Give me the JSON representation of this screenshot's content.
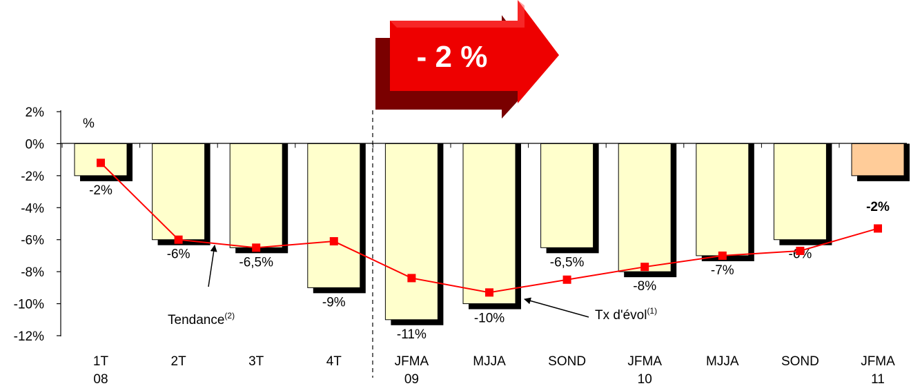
{
  "chart_data": {
    "type": "bar",
    "title": "",
    "y_unit_label": "%",
    "ylim": [
      -12,
      2
    ],
    "y_ticks": [
      "2%",
      "0%",
      "-2%",
      "-4%",
      "-6%",
      "-8%",
      "-10%",
      "-12%"
    ],
    "y_tick_values": [
      2,
      0,
      -2,
      -4,
      -6,
      -8,
      -10,
      -12
    ],
    "categories": [
      {
        "top": "1T",
        "bottom": "08"
      },
      {
        "top": "2T",
        "bottom": ""
      },
      {
        "top": "3T",
        "bottom": ""
      },
      {
        "top": "4T",
        "bottom": ""
      },
      {
        "top": "JFMA",
        "bottom": "09"
      },
      {
        "top": "MJJA",
        "bottom": ""
      },
      {
        "top": "SOND",
        "bottom": ""
      },
      {
        "top": "JFMA",
        "bottom": "10"
      },
      {
        "top": "MJJA",
        "bottom": ""
      },
      {
        "top": "SOND",
        "bottom": ""
      },
      {
        "top": "JFMA",
        "bottom": "11"
      }
    ],
    "series": [
      {
        "name": "Tendance",
        "kind": "bar",
        "values": [
          -2,
          -6,
          -6.5,
          -9,
          -11,
          -10,
          -6.5,
          -8,
          -7,
          -6,
          -2
        ],
        "labels": [
          "-2%",
          "-6%",
          "-6,5%",
          "-9%",
          "-11%",
          "-10%",
          "-6,5%",
          "-8%",
          "-7%",
          "-6%",
          "-2%"
        ],
        "color": "#FFFFCC",
        "highlight_color": "#FFCC99",
        "highlight_index": 10
      },
      {
        "name": "Tx d'évol",
        "kind": "line",
        "values": [
          -1.2,
          -6.0,
          -6.5,
          -6.1,
          -8.4,
          -9.3,
          -8.5,
          -7.7,
          -7.0,
          -6.7,
          -5.3
        ],
        "color": "#FF0000"
      }
    ],
    "callouts": [
      {
        "text": "Tendance",
        "sup": "(2)"
      },
      {
        "text": "Tx d'évol",
        "sup": "(1)"
      }
    ],
    "banner": {
      "text": "- 2 %",
      "color": "#FF0000"
    },
    "separator_after_index": 3,
    "grid": false,
    "legend": "none"
  }
}
